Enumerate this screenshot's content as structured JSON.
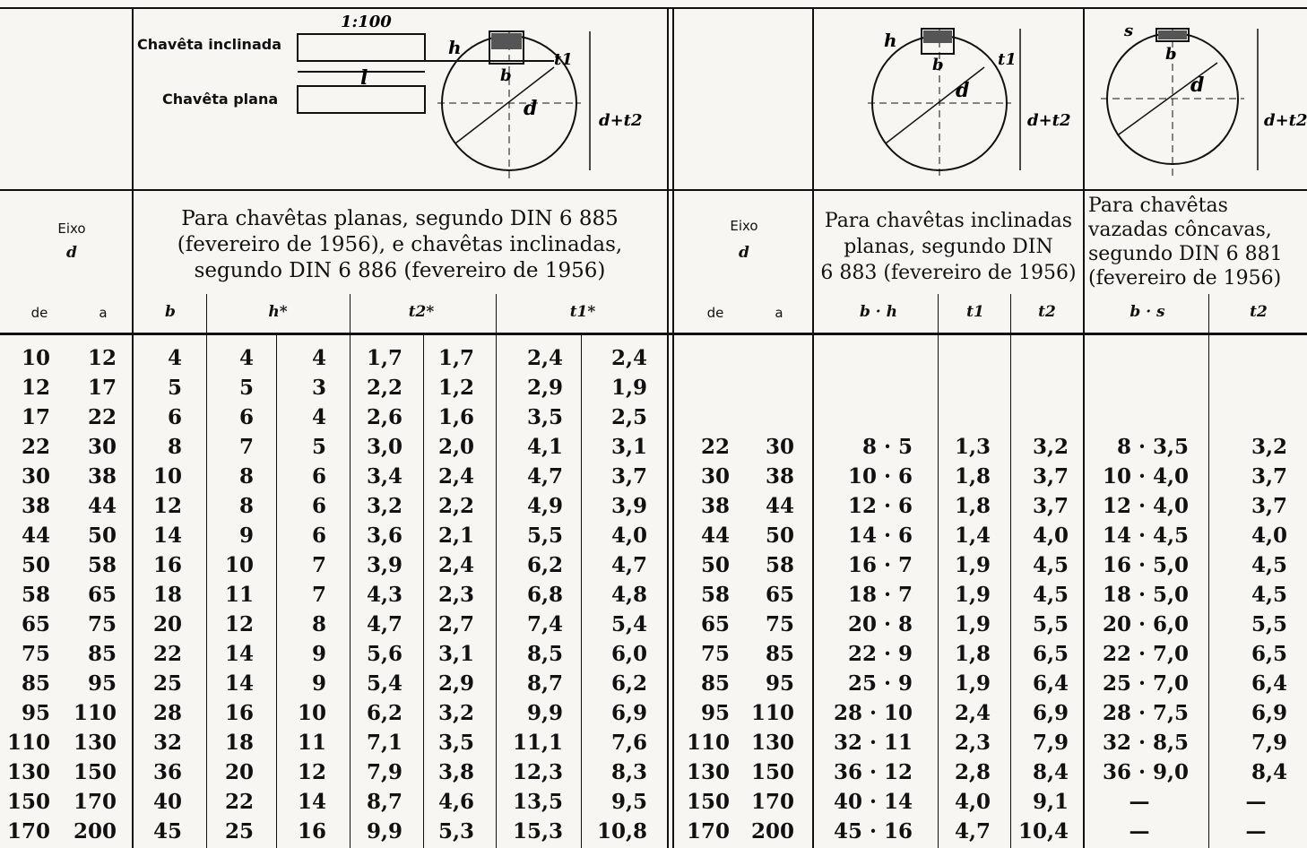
{
  "diagram": {
    "ratio": "1:100",
    "label_inclinada": "Chavêta inclinada",
    "label_plana": "Chavêta plana",
    "dim_l": "l",
    "dim_h": "h",
    "dim_t1": "t1",
    "dim_b": "b",
    "dim_d": "d",
    "dim_dt2": "d+t2",
    "dim_s": "s"
  },
  "headers": {
    "eixo": "Eixo",
    "d": "d",
    "de": "de",
    "a": "a",
    "group1": "Para chavêtas planas, segundo DIN 6 885 (fevereiro de 1956), e chavêtas inclinadas, segundo DIN 6 886 (fevereiro de 1956)",
    "group1_lines": [
      "Para chavêtas planas, segundo DIN 6 885",
      "(fevereiro de 1956), e chavêtas inclinadas,",
      "segundo DIN 6 886 (fevereiro de 1956)"
    ],
    "group2_lines": [
      "Para chavêtas inclinadas",
      "planas, segundo DIN",
      "6 883 (fevereiro de 1956)"
    ],
    "group3_lines": [
      "Para chavêtas",
      "vazadas côncavas,",
      "segundo DIN 6 881",
      "(fevereiro de 1956)"
    ],
    "b": "b",
    "h_star": "h*",
    "t2_star": "t2*",
    "t1_star": "t1*",
    "b_h": "b · h",
    "t1": "t1",
    "t2": "t2",
    "b_s": "b · s"
  },
  "rows_left": [
    [
      "10",
      "12",
      "4",
      "4",
      "4",
      "1,7",
      "1,7",
      "2,4",
      "2,4"
    ],
    [
      "12",
      "17",
      "5",
      "5",
      "3",
      "2,2",
      "1,2",
      "2,9",
      "1,9"
    ],
    [
      "17",
      "22",
      "6",
      "6",
      "4",
      "2,6",
      "1,6",
      "3,5",
      "2,5"
    ],
    [
      "22",
      "30",
      "8",
      "7",
      "5",
      "3,0",
      "2,0",
      "4,1",
      "3,1"
    ],
    [
      "30",
      "38",
      "10",
      "8",
      "6",
      "3,4",
      "2,4",
      "4,7",
      "3,7"
    ],
    [
      "38",
      "44",
      "12",
      "8",
      "6",
      "3,2",
      "2,2",
      "4,9",
      "3,9"
    ],
    [
      "44",
      "50",
      "14",
      "9",
      "6",
      "3,6",
      "2,1",
      "5,5",
      "4,0"
    ],
    [
      "50",
      "58",
      "16",
      "10",
      "7",
      "3,9",
      "2,4",
      "6,2",
      "4,7"
    ],
    [
      "58",
      "65",
      "18",
      "11",
      "7",
      "4,3",
      "2,3",
      "6,8",
      "4,8"
    ],
    [
      "65",
      "75",
      "20",
      "12",
      "8",
      "4,7",
      "2,7",
      "7,4",
      "5,4"
    ],
    [
      "75",
      "85",
      "22",
      "14",
      "9",
      "5,6",
      "3,1",
      "8,5",
      "6,0"
    ],
    [
      "85",
      "95",
      "25",
      "14",
      "9",
      "5,4",
      "2,9",
      "8,7",
      "6,2"
    ],
    [
      "95",
      "110",
      "28",
      "16",
      "10",
      "6,2",
      "3,2",
      "9,9",
      "6,9"
    ],
    [
      "110",
      "130",
      "32",
      "18",
      "11",
      "7,1",
      "3,5",
      "11,1",
      "7,6"
    ],
    [
      "130",
      "150",
      "36",
      "20",
      "12",
      "7,9",
      "3,8",
      "12,3",
      "8,3"
    ],
    [
      "150",
      "170",
      "40",
      "22",
      "14",
      "8,7",
      "4,6",
      "13,5",
      "9,5"
    ],
    [
      "170",
      "200",
      "45",
      "25",
      "16",
      "9,9",
      "5,3",
      "15,3",
      "10,8"
    ]
  ],
  "rows_right": [
    [
      "22",
      "30",
      "8 ·  5",
      "1,3",
      "3,2",
      "8 · 3,5",
      "3,2"
    ],
    [
      "30",
      "38",
      "10 ·  6",
      "1,8",
      "3,7",
      "10 · 4,0",
      "3,7"
    ],
    [
      "38",
      "44",
      "12 ·  6",
      "1,8",
      "3,7",
      "12 · 4,0",
      "3,7"
    ],
    [
      "44",
      "50",
      "14 ·  6",
      "1,4",
      "4,0",
      "14 · 4,5",
      "4,0"
    ],
    [
      "50",
      "58",
      "16 ·  7",
      "1,9",
      "4,5",
      "16 · 5,0",
      "4,5"
    ],
    [
      "58",
      "65",
      "18 ·  7",
      "1,9",
      "4,5",
      "18 · 5,0",
      "4,5"
    ],
    [
      "65",
      "75",
      "20 ·  8",
      "1,9",
      "5,5",
      "20 · 6,0",
      "5,5"
    ],
    [
      "75",
      "85",
      "22 ·  9",
      "1,8",
      "6,5",
      "22 · 7,0",
      "6,5"
    ],
    [
      "85",
      "95",
      "25 ·  9",
      "1,9",
      "6,4",
      "25 · 7,0",
      "6,4"
    ],
    [
      "95",
      "110",
      "28 · 10",
      "2,4",
      "6,9",
      "28 · 7,5",
      "6,9"
    ],
    [
      "110",
      "130",
      "32 · 11",
      "2,3",
      "7,9",
      "32 · 8,5",
      "7,9"
    ],
    [
      "130",
      "150",
      "36 · 12",
      "2,8",
      "8,4",
      "36 · 9,0",
      "8,4"
    ],
    [
      "150",
      "170",
      "40 · 14",
      "4,0",
      "9,1",
      "—",
      "—"
    ],
    [
      "170",
      "200",
      "45 · 16",
      "4,7",
      "10,4",
      "—",
      "—"
    ]
  ]
}
